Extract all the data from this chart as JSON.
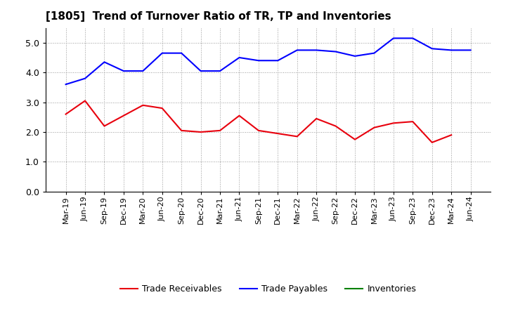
{
  "title": "[1805]  Trend of Turnover Ratio of TR, TP and Inventories",
  "x_labels": [
    "Mar-19",
    "Jun-19",
    "Sep-19",
    "Dec-19",
    "Mar-20",
    "Jun-20",
    "Sep-20",
    "Dec-20",
    "Mar-21",
    "Jun-21",
    "Sep-21",
    "Dec-21",
    "Mar-22",
    "Jun-22",
    "Sep-22",
    "Dec-22",
    "Mar-23",
    "Jun-23",
    "Sep-23",
    "Dec-23",
    "Mar-24",
    "Jun-24"
  ],
  "trade_receivables": [
    2.6,
    3.05,
    2.2,
    2.55,
    2.9,
    2.8,
    2.05,
    2.0,
    2.05,
    2.55,
    2.05,
    1.95,
    1.85,
    2.45,
    2.2,
    1.75,
    2.15,
    2.3,
    2.35,
    1.65,
    1.9,
    null
  ],
  "trade_payables": [
    3.6,
    3.8,
    4.35,
    4.05,
    4.05,
    4.65,
    4.65,
    4.05,
    4.05,
    4.5,
    4.4,
    4.4,
    4.75,
    4.75,
    4.7,
    4.55,
    4.65,
    5.15,
    5.15,
    4.8,
    4.75,
    4.75
  ],
  "inventories": [],
  "ylim": [
    0.0,
    5.5
  ],
  "yticks": [
    0.0,
    1.0,
    2.0,
    3.0,
    4.0,
    5.0
  ],
  "color_tr": "#e8000d",
  "color_tp": "#0000ff",
  "color_inv": "#008000",
  "bg_color": "#ffffff",
  "grid_color": "#999999",
  "title_fontsize": 11,
  "tick_fontsize": 8,
  "legend_labels": [
    "Trade Receivables",
    "Trade Payables",
    "Inventories"
  ]
}
